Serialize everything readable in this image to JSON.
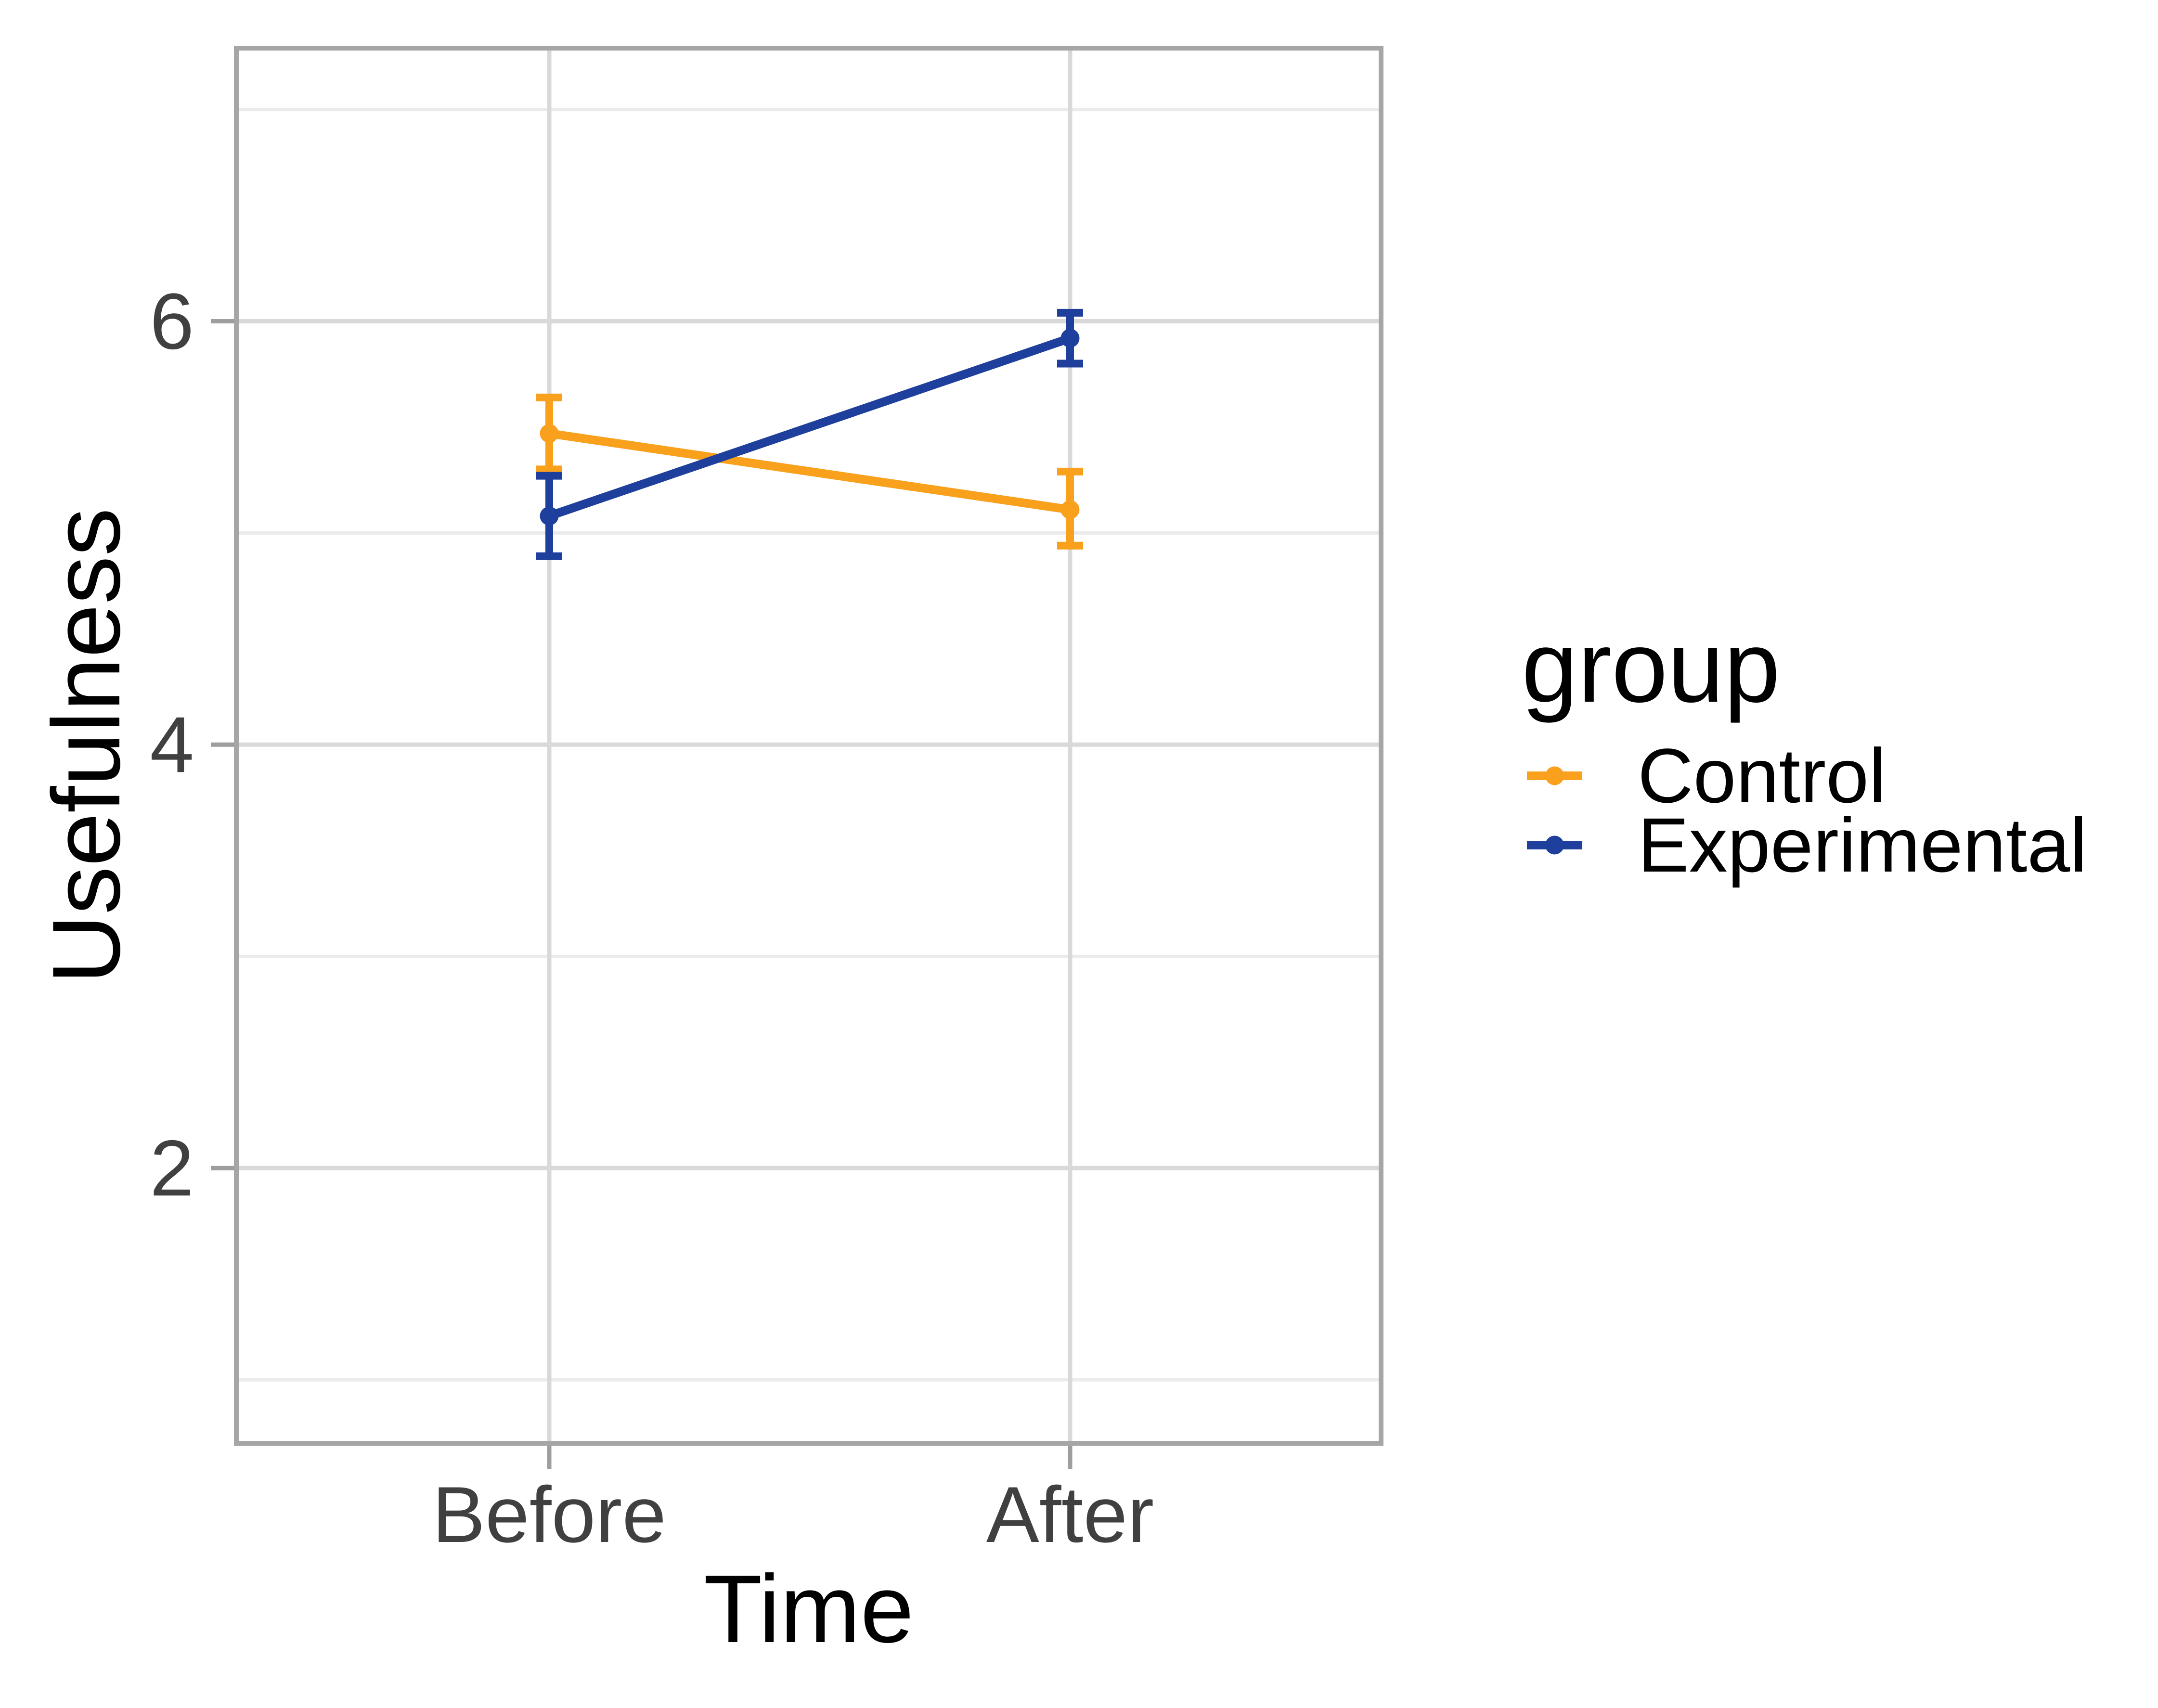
{
  "chart_data": {
    "type": "line",
    "subtype": "interaction-plot-with-error-bars",
    "x_categories": [
      "Before",
      "After"
    ],
    "series": [
      {
        "name": "Control",
        "color": "#F9A01D",
        "values": [
          5.47,
          5.11
        ],
        "ci_low": [
          5.3,
          4.94
        ],
        "ci_high": [
          5.64,
          5.29
        ]
      },
      {
        "name": "Experimental",
        "color": "#1E3F9B",
        "values": [
          5.08,
          5.92
        ],
        "ci_low": [
          4.89,
          5.8
        ],
        "ci_high": [
          5.27,
          6.04
        ]
      }
    ],
    "axes": {
      "x": {
        "label": "Time",
        "tick_labels": [
          "Before",
          "After"
        ]
      },
      "y": {
        "label": "Usefulness",
        "ticks": [
          2,
          4,
          6
        ],
        "tick_labels": [
          "2",
          "4",
          "6"
        ],
        "minor_ticks": [
          1,
          3,
          5,
          7
        ],
        "range": [
          0.7,
          7.29
        ]
      }
    },
    "grid": {
      "major_color": "#D9D9D9",
      "minor_color": "#EBEBEB",
      "panel_border_color": "#A6A6A6",
      "tick_color": "#9E9E9E",
      "tick_label_color": "#404040"
    },
    "legend_position": "right"
  },
  "legend": {
    "title": "group"
  }
}
